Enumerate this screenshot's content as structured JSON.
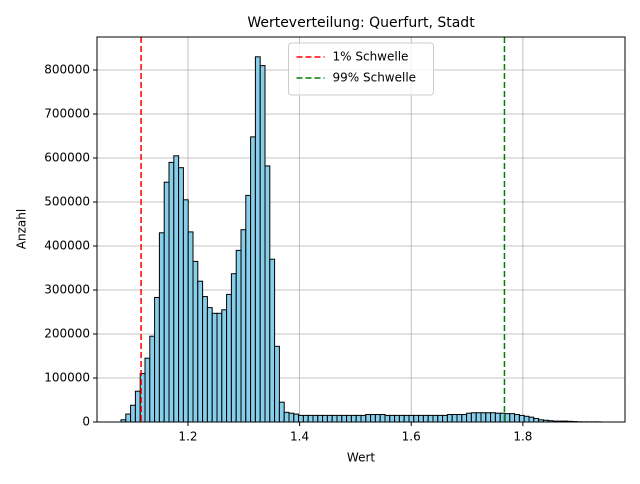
{
  "chart_data": {
    "type": "histogram",
    "title": "Werteverteilung: Querfurt, Stadt",
    "x_label": "Wert",
    "y_label": "Anzahl",
    "bins": [
      1.08,
      1.0886,
      1.0972,
      1.1058,
      1.1144,
      1.123,
      1.1316,
      1.1402,
      1.1488,
      1.1574,
      1.166,
      1.1746,
      1.1832,
      1.1918,
      1.2004,
      1.209,
      1.2176,
      1.2262,
      1.2348,
      1.2434,
      1.252,
      1.2606,
      1.2692,
      1.2778,
      1.2864,
      1.295,
      1.3036,
      1.3122,
      1.3208,
      1.3294,
      1.338,
      1.3466,
      1.3552,
      1.3638,
      1.3724,
      1.381,
      1.3896,
      1.3982,
      1.4068,
      1.4154,
      1.424,
      1.4326,
      1.4412,
      1.4498,
      1.4584,
      1.467,
      1.4756,
      1.4842,
      1.4928,
      1.5014,
      1.51,
      1.5186,
      1.5272,
      1.5358,
      1.5444,
      1.553,
      1.5616,
      1.5702,
      1.5788,
      1.5874,
      1.596,
      1.6046,
      1.6132,
      1.6218,
      1.6304,
      1.639,
      1.6476,
      1.6562,
      1.6648,
      1.6734,
      1.682,
      1.6906,
      1.6992,
      1.7078,
      1.7164,
      1.725,
      1.7336,
      1.7422,
      1.7508,
      1.7594,
      1.768,
      1.7766,
      1.7852,
      1.7938,
      1.8024,
      1.811,
      1.8196,
      1.8282,
      1.8368,
      1.8454,
      1.854,
      1.8626,
      1.8712,
      1.8798,
      1.8884,
      1.897,
      1.9056,
      1.9142,
      1.9228,
      1.9314,
      1.94
    ],
    "counts": [
      5000,
      18000,
      38000,
      70000,
      110000,
      145000,
      195000,
      283000,
      430000,
      545000,
      590000,
      605000,
      578000,
      505000,
      432000,
      365000,
      320000,
      285000,
      260000,
      247000,
      247000,
      255000,
      290000,
      337000,
      390000,
      437000,
      515000,
      648000,
      830000,
      810000,
      582000,
      370000,
      172000,
      45000,
      22000,
      20000,
      18000,
      15000,
      15000,
      15000,
      15000,
      15000,
      15000,
      15000,
      15000,
      15000,
      15000,
      15000,
      15000,
      15000,
      15000,
      17000,
      17000,
      17000,
      17000,
      15000,
      15000,
      15000,
      15000,
      15000,
      15000,
      15000,
      15000,
      15000,
      15000,
      15000,
      15000,
      15000,
      17000,
      17000,
      17000,
      17000,
      20000,
      21000,
      21000,
      21000,
      21000,
      21000,
      20000,
      20000,
      19000,
      19000,
      17000,
      15000,
      13000,
      11000,
      8000,
      5000,
      4000,
      3000,
      2000,
      2000,
      2000,
      1500,
      1000,
      500,
      300,
      300,
      300,
      300
    ],
    "color": "#87ceeb",
    "edge_color": "#000000",
    "vlines": [
      {
        "name": "1% Schwelle",
        "x": 1.116,
        "color": "#ff0000"
      },
      {
        "name": "99% Schwelle",
        "x": 1.767,
        "color": "#008000"
      }
    ],
    "xlim": [
      1.037,
      1.983
    ],
    "xticks": [
      1.2,
      1.4,
      1.6,
      1.8
    ],
    "ylim": [
      0,
      875000
    ],
    "yticks": [
      0,
      100000,
      200000,
      300000,
      400000,
      500000,
      600000,
      700000,
      800000
    ],
    "grid": true,
    "legend": "upper center"
  }
}
